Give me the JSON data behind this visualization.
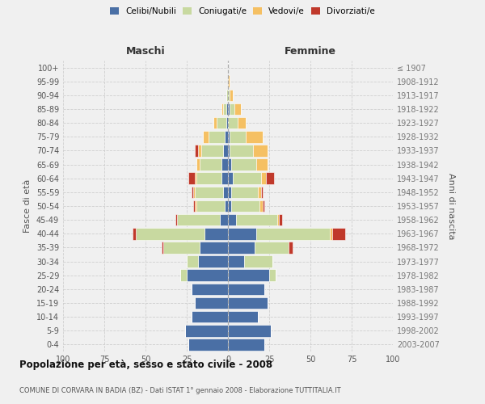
{
  "age_groups": [
    "0-4",
    "5-9",
    "10-14",
    "15-19",
    "20-24",
    "25-29",
    "30-34",
    "35-39",
    "40-44",
    "45-49",
    "50-54",
    "55-59",
    "60-64",
    "65-69",
    "70-74",
    "75-79",
    "80-84",
    "85-89",
    "90-94",
    "95-99",
    "100+"
  ],
  "birth_years": [
    "2003-2007",
    "1998-2002",
    "1993-1997",
    "1988-1992",
    "1983-1987",
    "1978-1982",
    "1973-1977",
    "1968-1972",
    "1963-1967",
    "1958-1962",
    "1953-1957",
    "1948-1952",
    "1943-1947",
    "1938-1942",
    "1933-1937",
    "1928-1932",
    "1923-1927",
    "1918-1922",
    "1913-1917",
    "1908-1912",
    "≤ 1907"
  ],
  "colors": {
    "celibe": "#4a6fa5",
    "coniugato": "#c8d9a0",
    "vedovo": "#f5c063",
    "divorziato": "#c0392b"
  },
  "males": {
    "celibe": [
      24,
      26,
      22,
      20,
      22,
      25,
      18,
      17,
      14,
      5,
      2,
      3,
      4,
      4,
      3,
      2,
      1,
      1,
      0,
      0,
      0
    ],
    "coniugato": [
      0,
      0,
      0,
      0,
      0,
      4,
      7,
      22,
      42,
      26,
      17,
      17,
      15,
      13,
      13,
      10,
      6,
      2,
      1,
      0,
      0
    ],
    "vedovo": [
      0,
      0,
      0,
      0,
      0,
      0,
      0,
      0,
      0,
      0,
      1,
      1,
      1,
      2,
      2,
      3,
      2,
      1,
      0,
      0,
      0
    ],
    "divorziato": [
      0,
      0,
      0,
      0,
      0,
      0,
      0,
      1,
      2,
      1,
      1,
      1,
      4,
      0,
      2,
      0,
      0,
      0,
      0,
      0,
      0
    ]
  },
  "females": {
    "nubile": [
      22,
      26,
      18,
      24,
      22,
      25,
      10,
      16,
      17,
      5,
      2,
      2,
      3,
      2,
      1,
      1,
      0,
      1,
      0,
      0,
      0
    ],
    "coniugata": [
      0,
      0,
      0,
      0,
      0,
      4,
      17,
      21,
      45,
      25,
      17,
      16,
      17,
      15,
      14,
      10,
      6,
      3,
      1,
      0,
      0
    ],
    "vedova": [
      0,
      0,
      0,
      0,
      0,
      0,
      0,
      0,
      1,
      1,
      2,
      2,
      3,
      7,
      9,
      10,
      5,
      4,
      2,
      1,
      0
    ],
    "divorziata": [
      0,
      0,
      0,
      0,
      0,
      0,
      0,
      2,
      8,
      2,
      1,
      1,
      5,
      0,
      0,
      0,
      0,
      0,
      0,
      0,
      0
    ]
  },
  "xlim": 100,
  "title": "Popolazione per età, sesso e stato civile - 2008",
  "subtitle": "COMUNE DI CORVARA IN BADIA (BZ) - Dati ISTAT 1° gennaio 2008 - Elaborazione TUTTITALIA.IT",
  "ylabel_left": "Fasce di età",
  "ylabel_right": "Anni di nascita",
  "maschi_label": "Maschi",
  "femmine_label": "Femmine",
  "bg_color": "#f0f0f0",
  "grid_color": "#cccccc"
}
